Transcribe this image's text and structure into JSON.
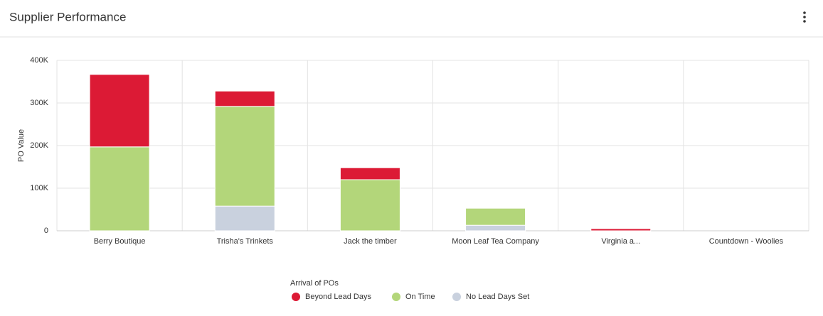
{
  "header": {
    "title": "Supplier Performance"
  },
  "chart_data": {
    "type": "stacked-bar",
    "y_label": "PO Value",
    "categories": [
      "Berry Boutique",
      "Trisha's Trinkets",
      "Jack the timber",
      "Moon Leaf Tea Company",
      "Virginia a...",
      "Countdown - Woolies"
    ],
    "series": [
      {
        "name": "Beyond Lead Days",
        "color": "#dc1a35",
        "values": [
          170000,
          36000,
          28000,
          0,
          5000,
          0
        ]
      },
      {
        "name": "On Time",
        "color": "#b3d67a",
        "values": [
          197000,
          234000,
          120000,
          40000,
          0,
          0
        ]
      },
      {
        "name": "No Lead Days Set",
        "color": "#c9d1de",
        "values": [
          0,
          58000,
          0,
          13000,
          0,
          0
        ]
      }
    ],
    "ylim": [
      0,
      400000
    ],
    "yticks": [
      0,
      {
        "value": 100000,
        "label": "100K"
      },
      {
        "value": 200000,
        "label": "200K"
      },
      {
        "value": 300000,
        "label": "300K"
      },
      {
        "value": 400000,
        "label": "400K"
      }
    ],
    "grid": true,
    "legend_title": "Arrival of POs",
    "legend_position": "bottom"
  }
}
